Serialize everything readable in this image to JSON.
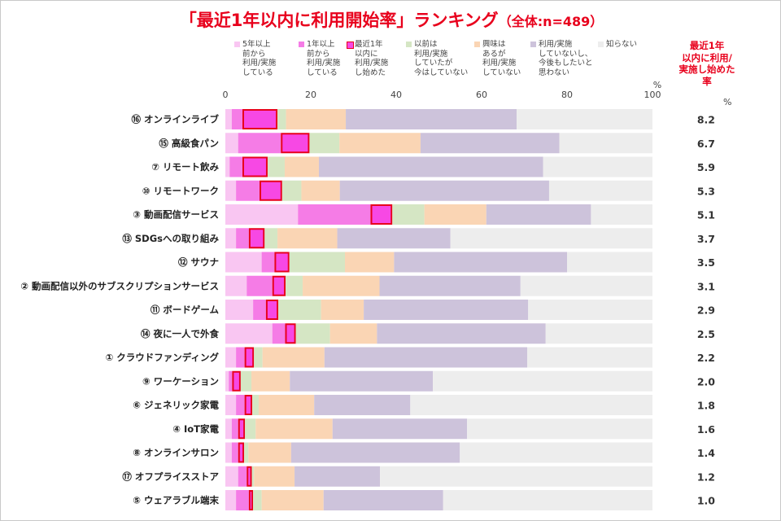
{
  "title": "「最近1年以内に利用開始率」ランキング",
  "subtitle": "（全体:n=489）",
  "rate_header": "最近1年\n以内に利用/\n実施し始めた\n率",
  "rate_unit": "%",
  "colors": {
    "s1": "#f9c6f2",
    "s2": "#f57ce6",
    "s3": "#f748e4",
    "s3_border": "#e8001c",
    "s4": "#d5e6c4",
    "s5": "#fad5b4",
    "s6": "#cdc3db",
    "s7": "#ededed"
  },
  "chart_data": {
    "type": "bar",
    "stacked": true,
    "orientation": "horizontal",
    "xlim": [
      0,
      100
    ],
    "xticks": [
      "0",
      "20",
      "40",
      "60",
      "80",
      "100"
    ],
    "xunit": "%",
    "categories": [
      "⑯ オンラインライブ",
      "⑮ 高級食パン",
      "⑦ リモート飲み",
      "⑩ リモートワーク",
      "③ 動画配信サービス",
      "⑬ SDGsへの取り組み",
      "⑫ サウナ",
      "② 動画配信以外のサブスクリプションサービス",
      "⑪ ボードゲーム",
      "⑭ 夜に一人で外食",
      "① クラウドファンディング",
      "⑨ ワーケーション",
      "⑥ ジェネリック家電",
      "④ IoT家電",
      "⑧ オンラインサロン",
      "⑰ オフプライスストア",
      "⑤ ウェアラブル端末"
    ],
    "series": [
      {
        "name": "5年以上\n前から\n利用/実施\nしている",
        "values": [
          1.5,
          3.0,
          1.0,
          2.5,
          17.0,
          2.5,
          8.5,
          5.0,
          6.5,
          11.0,
          2.5,
          0.8,
          2.5,
          1.5,
          1.5,
          3.0,
          2.5
        ]
      },
      {
        "name": "1年以上\n前から\n利用/実施\nしている",
        "values": [
          2.5,
          10.0,
          3.0,
          5.5,
          17.0,
          3.0,
          3.0,
          6.0,
          3.0,
          3.0,
          2.0,
          0.8,
          2.0,
          1.5,
          1.5,
          2.0,
          3.0
        ]
      },
      {
        "name": "最近1年\n以内に\n利用/実施\nし始めた",
        "values": [
          8.2,
          6.7,
          5.9,
          5.3,
          5.1,
          3.7,
          3.5,
          3.1,
          2.9,
          2.5,
          2.2,
          2.0,
          1.8,
          1.6,
          1.4,
          1.2,
          1.0
        ]
      },
      {
        "name": "以前は\n利用/実施\nしていたが\n今はしていない",
        "values": [
          2.0,
          7.0,
          4.0,
          4.5,
          7.5,
          3.0,
          13.0,
          4.0,
          10.0,
          8.0,
          2.0,
          2.5,
          1.5,
          2.5,
          1.0,
          0.5,
          2.0
        ]
      },
      {
        "name": "興味は\nあるが\n利用/実施\nしていない",
        "values": [
          14.0,
          19.0,
          8.0,
          9.0,
          14.5,
          14.0,
          11.5,
          18.0,
          10.0,
          11.0,
          14.5,
          9.0,
          13.0,
          18.0,
          10.0,
          9.5,
          14.5
        ]
      },
      {
        "name": "利用/実施\nしていないし、\n今後もしたいと\n思わない",
        "values": [
          40.0,
          32.5,
          52.5,
          49.0,
          24.5,
          26.5,
          40.5,
          33.0,
          38.5,
          39.5,
          47.5,
          33.5,
          22.5,
          31.5,
          39.5,
          20.0,
          28.0
        ]
      },
      {
        "name": "知らない",
        "values": [
          31.8,
          21.8,
          25.6,
          24.2,
          14.4,
          47.3,
          20.0,
          30.9,
          29.1,
          25.0,
          29.3,
          51.4,
          56.7,
          43.4,
          45.1,
          63.8,
          49.0
        ]
      }
    ],
    "rates": [
      "8.2",
      "6.7",
      "5.9",
      "5.3",
      "5.1",
      "3.7",
      "3.5",
      "3.1",
      "2.9",
      "2.5",
      "2.2",
      "2.0",
      "1.8",
      "1.6",
      "1.4",
      "1.2",
      "1.0"
    ],
    "highlight_series": 2,
    "grid": false,
    "legend_position": "top"
  }
}
